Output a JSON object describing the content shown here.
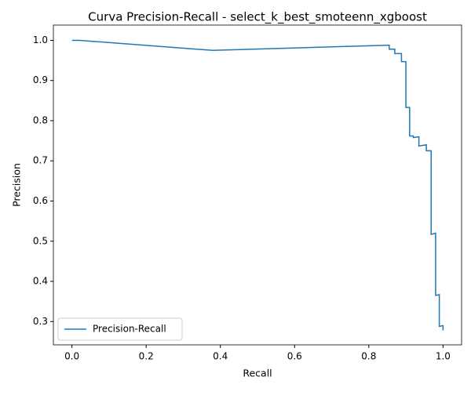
{
  "chart_data": {
    "type": "line",
    "title": "Curva Precision-Recall - select_k_best_smoteenn_xgboost",
    "x_label": "Recall",
    "y_label": "Precision",
    "series": [
      {
        "name": "Precision-Recall",
        "color": "#1f77b4",
        "x": [
          0,
          0.02,
          0.38,
          0.855,
          0.855,
          0.87,
          0.87,
          0.888,
          0.888,
          0.9,
          0.9,
          0.91,
          0.91,
          0.92,
          0.92,
          0.935,
          0.935,
          0.955,
          0.955,
          0.968,
          0.968,
          0.98,
          0.98,
          0.99,
          0.99,
          1.0,
          1.0
        ],
        "values": [
          1.0,
          1.0,
          0.975,
          0.988,
          0.978,
          0.978,
          0.967,
          0.967,
          0.947,
          0.947,
          0.833,
          0.833,
          0.762,
          0.762,
          0.758,
          0.76,
          0.737,
          0.74,
          0.725,
          0.725,
          0.517,
          0.52,
          0.365,
          0.367,
          0.288,
          0.29,
          0.278
        ]
      }
    ],
    "xlim": [
      -0.05,
      1.05
    ],
    "xticks": [
      {
        "value": 0,
        "label": "0.0"
      },
      0.2,
      0.4,
      0.6,
      0.8,
      {
        "value": 1,
        "label": "1.0"
      }
    ],
    "ylim": [
      0.242,
      1.038
    ],
    "yticks": [
      0.3,
      0.4,
      0.5,
      0.6,
      0.7,
      0.8,
      0.9,
      {
        "value": 1,
        "label": "1.0"
      }
    ],
    "legend": "lower left"
  }
}
